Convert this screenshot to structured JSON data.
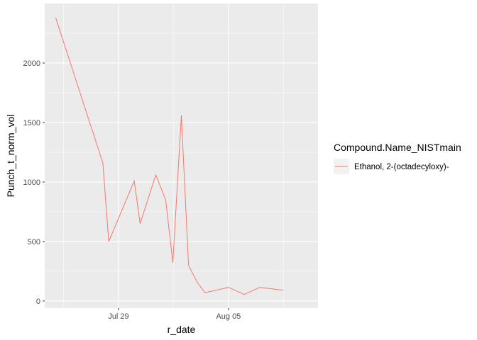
{
  "chart_data": {
    "type": "line",
    "xlabel": "r_date",
    "ylabel": "Punch_t_norm_vol",
    "x_ticks": [
      "Jul 29",
      "Aug 05"
    ],
    "y_ticks": [
      0,
      500,
      1000,
      1500,
      2000
    ],
    "xlim": [
      "2024-07-25",
      "2024-08-10"
    ],
    "ylim": [
      -60,
      2500
    ],
    "grid": true,
    "legend_title": "Compound.Name_NISTmain",
    "legend_position": "right",
    "series": [
      {
        "name": "Ethanol, 2-(octadecyloxy)-",
        "color": "#F8766D",
        "points": [
          [
            "2024-07-25",
            2380
          ],
          [
            "2024-07-28",
            1160
          ],
          [
            "2024-07-28T09:00",
            500
          ],
          [
            "2024-07-30",
            1010
          ],
          [
            "2024-07-30T09:00",
            650
          ],
          [
            "2024-07-31T09:00",
            1060
          ],
          [
            "2024-08-01",
            850
          ],
          [
            "2024-08-01T11:00",
            320
          ],
          [
            "2024-08-02",
            1560
          ],
          [
            "2024-08-02T11:00",
            300
          ],
          [
            "2024-08-03",
            160
          ],
          [
            "2024-08-03T12:00",
            70
          ],
          [
            "2024-08-05",
            115
          ],
          [
            "2024-08-06",
            55
          ],
          [
            "2024-08-07",
            115
          ],
          [
            "2024-08-08T12:00",
            90
          ]
        ]
      }
    ]
  }
}
